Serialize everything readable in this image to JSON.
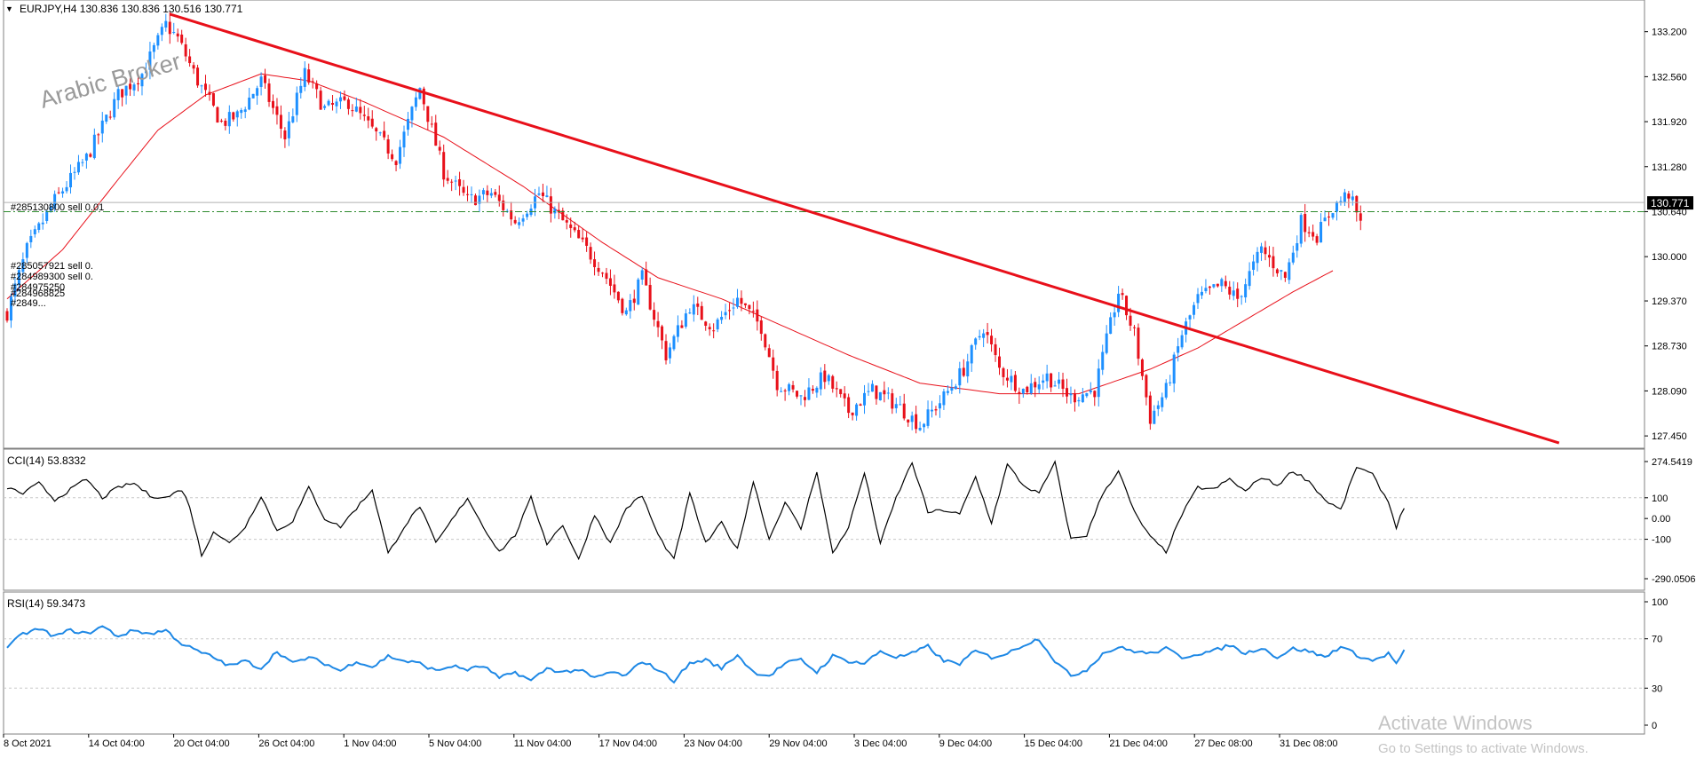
{
  "header": {
    "menu_arrow": "▼",
    "symbol_line": "EURJPY,H4  130.836 130.836 130.516 130.771"
  },
  "watermarks": {
    "broker": "Arabic Broker",
    "activate_title": "Activate Windows",
    "activate_subtitle": "Go to Settings to activate Windows."
  },
  "colors": {
    "bull": "#1E90FF",
    "bear": "#E8101A",
    "ma": "#E8101A",
    "trendline": "#E8101A",
    "order_level": "#2E8B2E",
    "cci": "#000000",
    "rsi": "#1E88E5",
    "price_tag_bg": "#000000",
    "grid_dash": "#C8C8C8"
  },
  "trade_labels": {
    "main": "#285130800 sell 0.01",
    "stack": [
      "#285057921 sell 0.",
      "#284989300 sell 0.",
      "#284975250",
      "#284968825",
      "#2849..."
    ]
  },
  "chart_data": [
    {
      "type": "candlestick",
      "title": "EURJPY,H4",
      "ohlc": {
        "open": 130.836,
        "high": 130.836,
        "low": 130.516,
        "close": 130.771
      },
      "last_price_label": "130.771",
      "order_level": 130.64,
      "ylim": [
        127.3,
        133.6
      ],
      "y_ticks": [
        "133.200",
        "132.560",
        "131.920",
        "131.280",
        "130.640",
        "130.000",
        "129.370",
        "128.730",
        "128.090",
        "127.450"
      ],
      "x_ticks": [
        "8 Oct 2021",
        "14 Oct 04:00",
        "20 Oct 04:00",
        "26 Oct 04:00",
        "1 Nov 04:00",
        "5 Nov 04:00",
        "11 Nov 04:00",
        "17 Nov 04:00",
        "23 Nov 04:00",
        "29 Nov 04:00",
        "3 Dec 04:00",
        "9 Dec 04:00",
        "15 Dec 04:00",
        "21 Dec 04:00",
        "27 Dec 08:00",
        "31 Dec 08:00"
      ],
      "close_anchors": [
        [
          0,
          129.2
        ],
        [
          5,
          130.1
        ],
        [
          12,
          130.8
        ],
        [
          20,
          131.4
        ],
        [
          28,
          132.3
        ],
        [
          34,
          132.6
        ],
        [
          40,
          133.3
        ],
        [
          43,
          133.1
        ],
        [
          48,
          132.5
        ],
        [
          54,
          131.9
        ],
        [
          58,
          132.0
        ],
        [
          64,
          132.5
        ],
        [
          70,
          131.7
        ],
        [
          75,
          132.6
        ],
        [
          80,
          132.1
        ],
        [
          86,
          132.2
        ],
        [
          92,
          131.8
        ],
        [
          98,
          131.4
        ],
        [
          104,
          132.4
        ],
        [
          110,
          131.2
        ],
        [
          116,
          130.8
        ],
        [
          122,
          130.9
        ],
        [
          128,
          130.5
        ],
        [
          134,
          130.9
        ],
        [
          140,
          130.5
        ],
        [
          146,
          130.1
        ],
        [
          150,
          129.8
        ],
        [
          156,
          129.2
        ],
        [
          160,
          129.7
        ],
        [
          166,
          128.6
        ],
        [
          172,
          129.3
        ],
        [
          178,
          129.0
        ],
        [
          184,
          129.4
        ],
        [
          190,
          129.0
        ],
        [
          194,
          128.2
        ],
        [
          200,
          128.0
        ],
        [
          206,
          128.3
        ],
        [
          212,
          127.8
        ],
        [
          218,
          128.1
        ],
        [
          224,
          127.9
        ],
        [
          230,
          127.6
        ],
        [
          236,
          128.0
        ],
        [
          241,
          128.4
        ],
        [
          246,
          129.0
        ],
        [
          250,
          128.4
        ],
        [
          256,
          128.1
        ],
        [
          262,
          128.3
        ],
        [
          268,
          128.0
        ],
        [
          274,
          128.1
        ],
        [
          280,
          129.5
        ],
        [
          284,
          128.9
        ],
        [
          288,
          127.7
        ],
        [
          292,
          128.1
        ],
        [
          296,
          128.9
        ],
        [
          300,
          129.4
        ],
        [
          306,
          129.6
        ],
        [
          310,
          129.4
        ],
        [
          316,
          130.1
        ],
        [
          322,
          129.7
        ],
        [
          326,
          130.5
        ],
        [
          330,
          130.3
        ],
        [
          334,
          130.7
        ],
        [
          338,
          130.9
        ],
        [
          342,
          130.3
        ],
        [
          344,
          130.8
        ]
      ],
      "ma_anchors": [
        [
          0,
          129.4
        ],
        [
          14,
          130.1
        ],
        [
          28,
          131.1
        ],
        [
          38,
          131.8
        ],
        [
          50,
          132.3
        ],
        [
          64,
          132.6
        ],
        [
          76,
          132.5
        ],
        [
          90,
          132.2
        ],
        [
          110,
          131.7
        ],
        [
          130,
          131.0
        ],
        [
          150,
          130.2
        ],
        [
          164,
          129.7
        ],
        [
          180,
          129.4
        ],
        [
          196,
          129.0
        ],
        [
          212,
          128.6
        ],
        [
          230,
          128.2
        ],
        [
          250,
          128.05
        ],
        [
          270,
          128.05
        ],
        [
          288,
          128.4
        ],
        [
          300,
          128.7
        ],
        [
          312,
          129.1
        ],
        [
          324,
          129.5
        ],
        [
          334,
          129.8
        ]
      ],
      "trendline": {
        "from": [
          41,
          133.45
        ],
        "to": [
          391,
          127.35
        ]
      }
    },
    {
      "type": "line",
      "title": "CCI(14) 53.8332",
      "series": [
        {
          "name": "CCI(14)",
          "last": 53.8332
        }
      ],
      "ylim": [
        -290.0506,
        274.5419
      ],
      "y_ticks": [
        "274.5419",
        "100",
        "0.00",
        "-100",
        "-290.0506"
      ],
      "levels": [
        100,
        -100
      ],
      "anchors": [
        [
          0,
          150
        ],
        [
          4,
          120
        ],
        [
          8,
          170
        ],
        [
          12,
          90
        ],
        [
          16,
          140
        ],
        [
          20,
          190
        ],
        [
          24,
          100
        ],
        [
          28,
          150
        ],
        [
          32,
          170
        ],
        [
          36,
          110
        ],
        [
          40,
          100
        ],
        [
          44,
          140
        ],
        [
          46,
          60
        ],
        [
          49,
          -180
        ],
        [
          52,
          -60
        ],
        [
          56,
          -120
        ],
        [
          60,
          -40
        ],
        [
          64,
          110
        ],
        [
          68,
          -60
        ],
        [
          72,
          -10
        ],
        [
          76,
          150
        ],
        [
          80,
          0
        ],
        [
          84,
          -40
        ],
        [
          88,
          50
        ],
        [
          92,
          140
        ],
        [
          96,
          -170
        ],
        [
          100,
          -40
        ],
        [
          104,
          60
        ],
        [
          108,
          -120
        ],
        [
          112,
          -10
        ],
        [
          116,
          100
        ],
        [
          120,
          -40
        ],
        [
          124,
          -160
        ],
        [
          128,
          -80
        ],
        [
          132,
          100
        ],
        [
          136,
          -120
        ],
        [
          140,
          -30
        ],
        [
          144,
          -200
        ],
        [
          148,
          20
        ],
        [
          152,
          -120
        ],
        [
          156,
          50
        ],
        [
          160,
          110
        ],
        [
          164,
          -80
        ],
        [
          168,
          -200
        ],
        [
          172,
          120
        ],
        [
          176,
          -120
        ],
        [
          180,
          -20
        ],
        [
          184,
          -150
        ],
        [
          188,
          180
        ],
        [
          192,
          -100
        ],
        [
          196,
          80
        ],
        [
          200,
          -50
        ],
        [
          204,
          230
        ],
        [
          208,
          -170
        ],
        [
          212,
          -40
        ],
        [
          216,
          220
        ],
        [
          220,
          -120
        ],
        [
          224,
          100
        ],
        [
          228,
          270
        ],
        [
          232,
          30
        ],
        [
          236,
          40
        ],
        [
          240,
          20
        ],
        [
          244,
          200
        ],
        [
          248,
          -20
        ],
        [
          252,
          260
        ],
        [
          256,
          160
        ],
        [
          260,
          120
        ],
        [
          264,
          270
        ],
        [
          268,
          -100
        ],
        [
          272,
          -80
        ],
        [
          276,
          120
        ],
        [
          280,
          230
        ],
        [
          284,
          30
        ],
        [
          288,
          -90
        ],
        [
          292,
          -160
        ],
        [
          296,
          20
        ],
        [
          300,
          150
        ],
        [
          304,
          140
        ],
        [
          308,
          190
        ],
        [
          312,
          130
        ],
        [
          316,
          200
        ],
        [
          320,
          160
        ],
        [
          324,
          230
        ],
        [
          328,
          180
        ],
        [
          332,
          90
        ],
        [
          336,
          40
        ],
        [
          340,
          250
        ],
        [
          344,
          210
        ],
        [
          348,
          80
        ],
        [
          350,
          -40
        ],
        [
          352,
          55
        ]
      ]
    },
    {
      "type": "line",
      "title": "RSI(14) 59.3473",
      "series": [
        {
          "name": "RSI(14)",
          "last": 59.3473
        }
      ],
      "ylim": [
        0,
        100
      ],
      "y_ticks": [
        "100",
        "70",
        "30",
        "0"
      ],
      "levels": [
        70,
        30
      ],
      "anchors": [
        [
          0,
          63
        ],
        [
          4,
          74
        ],
        [
          8,
          78
        ],
        [
          12,
          72
        ],
        [
          16,
          77
        ],
        [
          20,
          74
        ],
        [
          24,
          80
        ],
        [
          28,
          72
        ],
        [
          32,
          77
        ],
        [
          36,
          74
        ],
        [
          40,
          77
        ],
        [
          44,
          66
        ],
        [
          48,
          60
        ],
        [
          52,
          55
        ],
        [
          56,
          48
        ],
        [
          60,
          52
        ],
        [
          64,
          46
        ],
        [
          68,
          60
        ],
        [
          72,
          50
        ],
        [
          76,
          55
        ],
        [
          80,
          50
        ],
        [
          84,
          44
        ],
        [
          88,
          52
        ],
        [
          92,
          47
        ],
        [
          96,
          56
        ],
        [
          100,
          52
        ],
        [
          104,
          50
        ],
        [
          108,
          44
        ],
        [
          112,
          48
        ],
        [
          116,
          45
        ],
        [
          120,
          48
        ],
        [
          124,
          38
        ],
        [
          128,
          43
        ],
        [
          132,
          36
        ],
        [
          136,
          46
        ],
        [
          140,
          43
        ],
        [
          144,
          45
        ],
        [
          148,
          38
        ],
        [
          152,
          43
        ],
        [
          156,
          40
        ],
        [
          160,
          52
        ],
        [
          164,
          45
        ],
        [
          168,
          36
        ],
        [
          172,
          50
        ],
        [
          176,
          53
        ],
        [
          180,
          46
        ],
        [
          184,
          57
        ],
        [
          188,
          43
        ],
        [
          192,
          40
        ],
        [
          196,
          50
        ],
        [
          200,
          53
        ],
        [
          204,
          43
        ],
        [
          208,
          56
        ],
        [
          212,
          52
        ],
        [
          216,
          50
        ],
        [
          220,
          60
        ],
        [
          224,
          55
        ],
        [
          228,
          58
        ],
        [
          232,
          64
        ],
        [
          236,
          52
        ],
        [
          240,
          50
        ],
        [
          244,
          60
        ],
        [
          248,
          55
        ],
        [
          252,
          58
        ],
        [
          256,
          65
        ],
        [
          260,
          70
        ],
        [
          264,
          52
        ],
        [
          268,
          40
        ],
        [
          272,
          45
        ],
        [
          276,
          58
        ],
        [
          280,
          63
        ],
        [
          284,
          60
        ],
        [
          288,
          58
        ],
        [
          292,
          62
        ],
        [
          296,
          55
        ],
        [
          300,
          58
        ],
        [
          304,
          60
        ],
        [
          308,
          65
        ],
        [
          312,
          58
        ],
        [
          316,
          63
        ],
        [
          320,
          55
        ],
        [
          324,
          62
        ],
        [
          328,
          60
        ],
        [
          332,
          55
        ],
        [
          336,
          64
        ],
        [
          340,
          57
        ],
        [
          344,
          52
        ],
        [
          348,
          58
        ],
        [
          350,
          50
        ],
        [
          352,
          60
        ]
      ]
    }
  ]
}
